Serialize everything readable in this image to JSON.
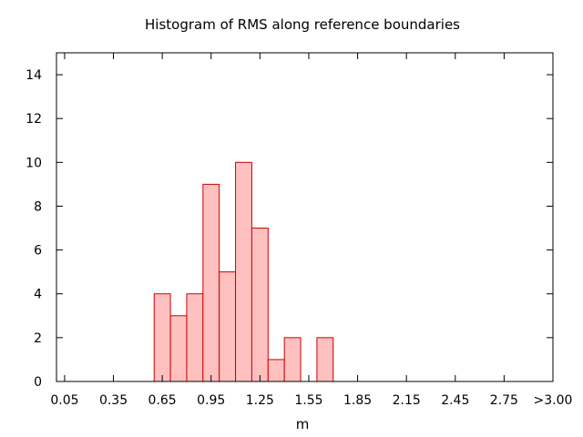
{
  "chart_data": {
    "type": "bar",
    "title": "Histogram of RMS along reference boundaries",
    "xlabel": "m",
    "ylabel": "",
    "ylim": [
      0,
      15
    ],
    "xlim": [
      0.0,
      3.05
    ],
    "bin_width": 0.1,
    "x_tick_labels": [
      "0.05",
      "0.35",
      "0.65",
      "0.95",
      "1.25",
      "1.55",
      "1.85",
      "2.15",
      "2.45",
      "2.75",
      ">3.00"
    ],
    "y_ticks": [
      0,
      2,
      4,
      6,
      8,
      10,
      12,
      14
    ],
    "bins": [
      {
        "x": 0.65,
        "value": 4
      },
      {
        "x": 0.75,
        "value": 3
      },
      {
        "x": 0.85,
        "value": 4
      },
      {
        "x": 0.95,
        "value": 9
      },
      {
        "x": 1.05,
        "value": 5
      },
      {
        "x": 1.15,
        "value": 10
      },
      {
        "x": 1.25,
        "value": 7
      },
      {
        "x": 1.35,
        "value": 1
      },
      {
        "x": 1.45,
        "value": 2
      },
      {
        "x": 1.65,
        "value": 2
      }
    ],
    "bar_fill": "#ffc0c0",
    "bar_stroke": "#cc0000",
    "grid": false
  }
}
